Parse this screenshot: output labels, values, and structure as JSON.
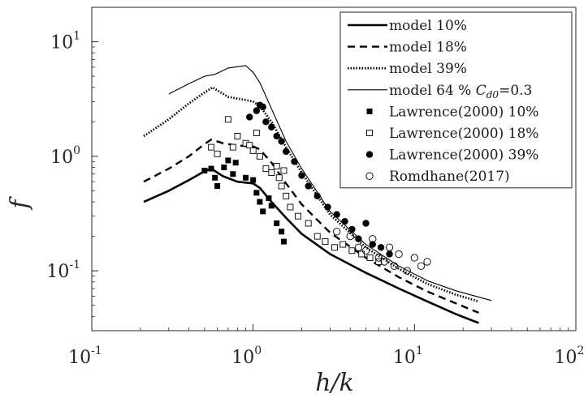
{
  "chart_data": {
    "type": "line",
    "xlabel": "h/k",
    "ylabel": "f",
    "xscale": "log",
    "yscale": "log",
    "xlim": [
      0.1,
      100
    ],
    "ylim": [
      0.03,
      20
    ],
    "grid": false,
    "legend_placement": "top-right",
    "x_ticks": [
      {
        "value": 0.1,
        "base": "10",
        "exp": "-1"
      },
      {
        "value": 1,
        "base": "10",
        "exp": "0"
      },
      {
        "value": 10,
        "base": "10",
        "exp": "1"
      },
      {
        "value": 100,
        "base": "10",
        "exp": "2"
      }
    ],
    "y_ticks": [
      {
        "value": 0.1,
        "base": "10",
        "exp": "-1"
      },
      {
        "value": 1,
        "base": "10",
        "exp": "0"
      },
      {
        "value": 10,
        "base": "10",
        "exp": "1"
      }
    ],
    "series": [
      {
        "name": "model 10%",
        "kind": "line",
        "style": "solid-thick",
        "color": "#000000",
        "x": [
          0.21,
          0.3,
          0.4,
          0.5,
          0.55,
          0.65,
          0.8,
          1.0,
          1.1,
          1.3,
          1.6,
          2.0,
          3.0,
          5.0,
          8.0,
          12.0,
          18.0,
          25.0
        ],
        "y": [
          0.4,
          0.5,
          0.62,
          0.74,
          0.78,
          0.67,
          0.6,
          0.58,
          0.53,
          0.4,
          0.29,
          0.21,
          0.14,
          0.096,
          0.07,
          0.054,
          0.042,
          0.035
        ]
      },
      {
        "name": "model 18%",
        "kind": "line",
        "style": "dashed-thick",
        "color": "#000000",
        "x": [
          0.21,
          0.3,
          0.4,
          0.5,
          0.55,
          0.65,
          0.8,
          1.0,
          1.1,
          1.3,
          1.6,
          2.0,
          3.0,
          5.0,
          8.0,
          12.0,
          18.0,
          25.0
        ],
        "y": [
          0.6,
          0.78,
          1.0,
          1.28,
          1.4,
          1.3,
          1.24,
          1.22,
          1.15,
          0.88,
          0.58,
          0.38,
          0.215,
          0.13,
          0.088,
          0.066,
          0.052,
          0.043
        ]
      },
      {
        "name": "model 39%",
        "kind": "line",
        "style": "dotted-thick",
        "color": "#000000",
        "x": [
          0.21,
          0.3,
          0.4,
          0.5,
          0.56,
          0.7,
          0.9,
          1.0,
          1.1,
          1.3,
          1.6,
          2.0,
          3.0,
          5.0,
          8.0,
          12.0,
          18.0,
          25.0
        ],
        "y": [
          1.5,
          2.1,
          2.9,
          3.6,
          4.0,
          3.3,
          3.1,
          3.0,
          2.75,
          2.0,
          1.2,
          0.72,
          0.31,
          0.16,
          0.104,
          0.077,
          0.062,
          0.054
        ]
      },
      {
        "name": "model 64 % ",
        "legend_math_base": "C",
        "legend_math_sub": "d0",
        "legend_suffix": "=0.3",
        "kind": "line",
        "style": "solid-thin",
        "color": "#000000",
        "x": [
          0.3,
          0.4,
          0.5,
          0.58,
          0.7,
          0.9,
          1.0,
          1.1,
          1.3,
          1.6,
          2.0,
          3.0,
          5.0,
          8.0,
          12.0,
          18.0,
          30.0
        ],
        "y": [
          3.5,
          4.3,
          5.0,
          5.2,
          5.9,
          6.2,
          5.4,
          4.4,
          2.6,
          1.35,
          0.78,
          0.33,
          0.17,
          0.11,
          0.082,
          0.067,
          0.055
        ]
      },
      {
        "name": "Lawrence(2000) 10%",
        "kind": "marker",
        "marker": "filled-square",
        "color": "#000000",
        "x": [
          0.5,
          0.55,
          0.58,
          0.6,
          0.66,
          0.7,
          0.75,
          0.78,
          0.9,
          1.0,
          1.05,
          1.1,
          1.15,
          1.25,
          1.3,
          1.4,
          1.5,
          1.55
        ],
        "y": [
          0.75,
          0.78,
          0.65,
          0.55,
          0.8,
          0.92,
          0.7,
          0.88,
          0.65,
          0.62,
          0.48,
          0.4,
          0.33,
          0.43,
          0.37,
          0.26,
          0.22,
          0.18
        ]
      },
      {
        "name": "Lawrence(2000) 18%",
        "kind": "marker",
        "marker": "open-square",
        "color": "#000000",
        "x": [
          0.55,
          0.6,
          0.7,
          0.75,
          0.8,
          0.9,
          0.95,
          1.0,
          1.05,
          1.1,
          1.2,
          1.3,
          1.4,
          1.45,
          1.5,
          1.55,
          1.6,
          1.7,
          1.9,
          2.2,
          2.5,
          2.8,
          3.2,
          3.6,
          4.1,
          4.7,
          5.3,
          6.0
        ],
        "y": [
          1.2,
          1.05,
          2.1,
          1.2,
          1.5,
          1.3,
          1.25,
          1.12,
          1.6,
          1.0,
          0.78,
          0.72,
          0.82,
          0.65,
          0.55,
          0.75,
          0.45,
          0.36,
          0.3,
          0.26,
          0.2,
          0.18,
          0.16,
          0.17,
          0.15,
          0.14,
          0.13,
          0.12
        ]
      },
      {
        "name": "Lawrence(2000) 39%",
        "kind": "marker",
        "marker": "filled-circle",
        "color": "#000000",
        "x": [
          0.95,
          1.05,
          1.1,
          1.15,
          1.2,
          1.3,
          1.4,
          1.5,
          1.6,
          1.8,
          2.0,
          2.2,
          2.5,
          2.9,
          3.3,
          3.7,
          4.1,
          4.5,
          5.0,
          5.5,
          6.2,
          7.0
        ],
        "y": [
          2.2,
          2.5,
          2.8,
          2.7,
          2.0,
          1.8,
          1.5,
          1.35,
          1.1,
          0.9,
          0.68,
          0.55,
          0.45,
          0.36,
          0.31,
          0.27,
          0.23,
          0.19,
          0.26,
          0.17,
          0.16,
          0.14
        ]
      },
      {
        "name": "Romdhane(2017)",
        "kind": "marker",
        "marker": "open-circle",
        "color": "#000000",
        "x": [
          3.3,
          4.0,
          4.5,
          5.0,
          5.5,
          6.0,
          6.5,
          7.0,
          7.5,
          8.0,
          9.0,
          10.0,
          11.0,
          12.0
        ],
        "y": [
          0.22,
          0.2,
          0.16,
          0.15,
          0.19,
          0.13,
          0.12,
          0.16,
          0.11,
          0.14,
          0.1,
          0.13,
          0.11,
          0.12
        ]
      }
    ]
  }
}
